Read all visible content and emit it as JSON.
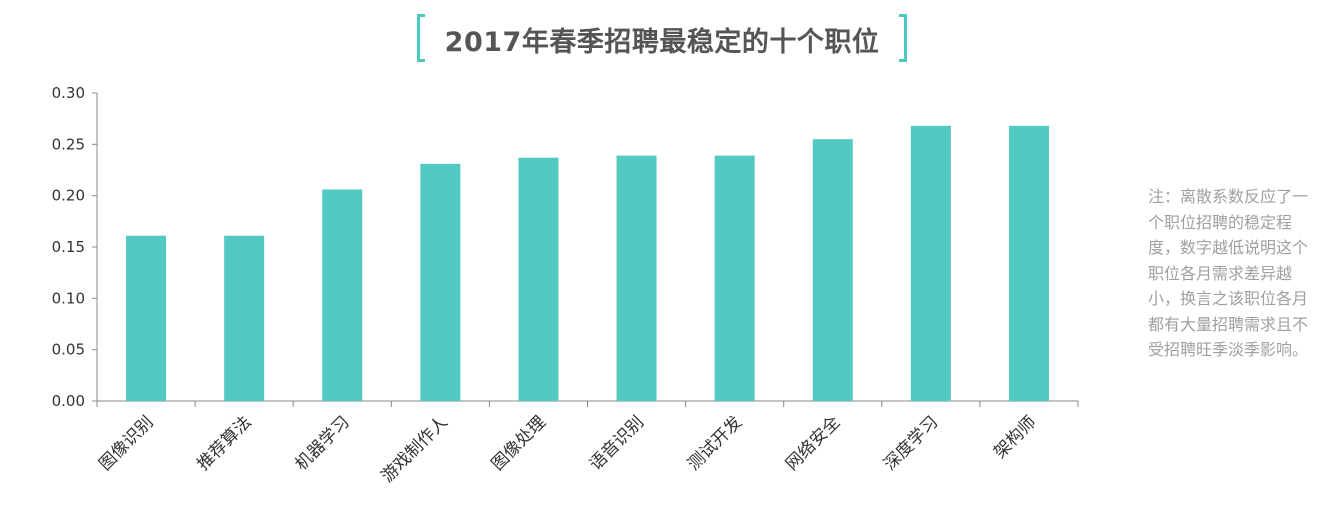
{
  "title": "2017年春季招聘最稳定的十个职位",
  "note": "注：离散系数反应了一个职位招聘的稳定程度，数字越低说明这个职位各月需求差异越小，换言之该职位各月都有大量招聘需求且不受招聘旺季淡季影响。",
  "colors": {
    "bar": "#52c9c1",
    "accent": "#4ec9c0",
    "axis": "#888888"
  },
  "chart_data": {
    "type": "bar",
    "title": "2017年春季招聘最稳定的十个职位",
    "categories": [
      "图像识别",
      "推荐算法",
      "机器学习",
      "游戏制作人",
      "图像处理",
      "语音识别",
      "测试开发",
      "网络安全",
      "深度学习",
      "架构师"
    ],
    "values": [
      0.161,
      0.161,
      0.206,
      0.231,
      0.237,
      0.239,
      0.239,
      0.255,
      0.268,
      0.268
    ],
    "ylim": [
      0,
      0.3
    ],
    "yticks": [
      "0.00",
      "0.05",
      "0.10",
      "0.15",
      "0.20",
      "0.25",
      "0.30"
    ],
    "xlabel": "",
    "ylabel": "",
    "grid": false,
    "legend": "none"
  }
}
